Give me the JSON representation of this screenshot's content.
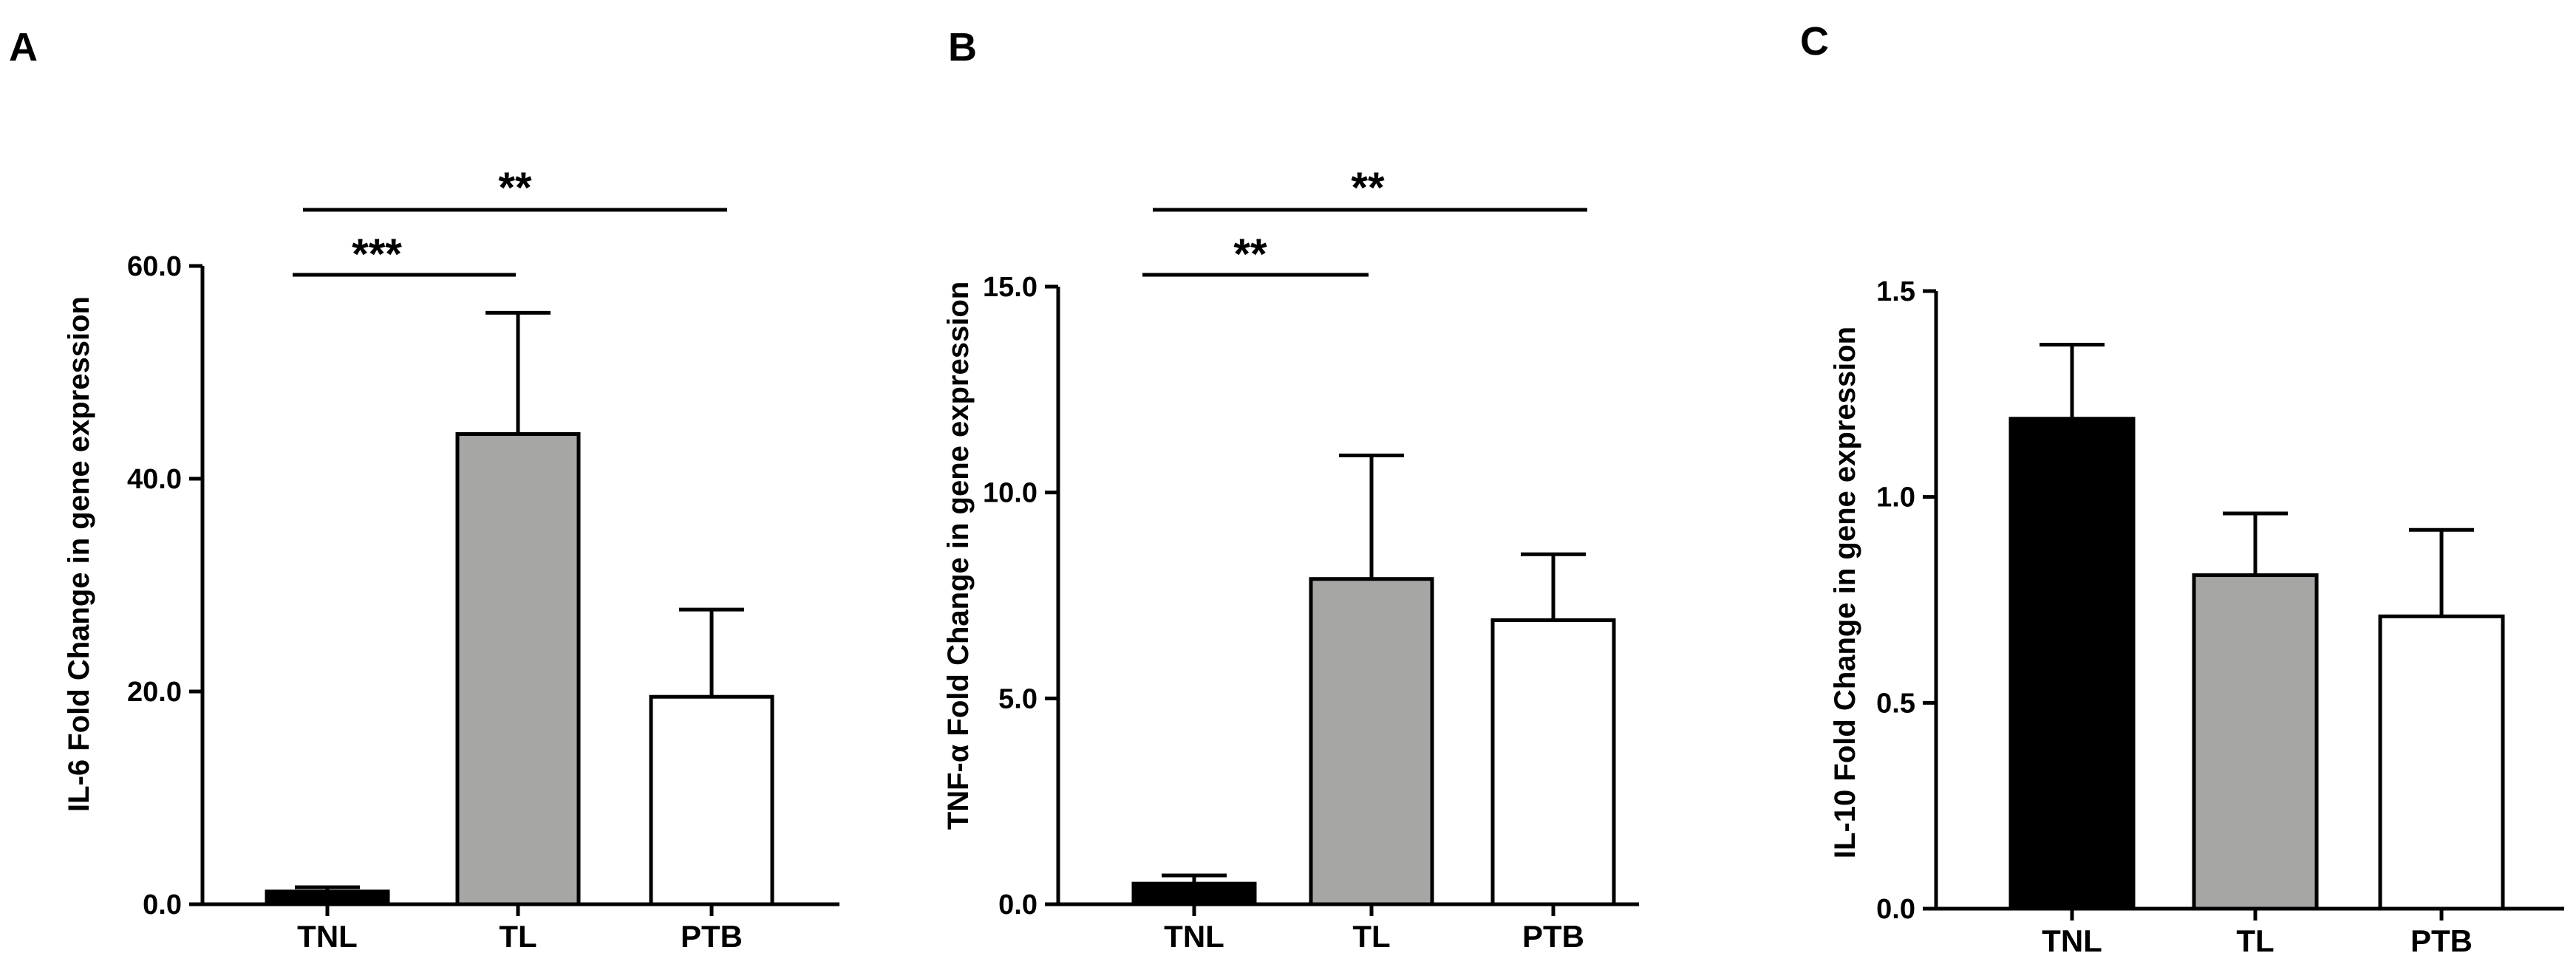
{
  "chart_data": [
    {
      "type": "bar",
      "panel": "A",
      "ylabel": "IL-6 Fold Change in gene expression",
      "categories": [
        "TNL",
        "TL",
        "PTB"
      ],
      "values": [
        1.2,
        44.2,
        19.5
      ],
      "errors": [
        0.4,
        11.4,
        8.2
      ],
      "colors": [
        "#000000",
        "#a6a6a4",
        "#ffffff"
      ],
      "ylim": [
        0,
        60
      ],
      "yticks": [
        0,
        20,
        40,
        60
      ],
      "ytick_labels": [
        "0.0",
        "20.0",
        "40.0",
        "60.0"
      ],
      "significance": [
        {
          "from": "TNL",
          "to": "TL",
          "label": "***"
        },
        {
          "from": "TNL",
          "to": "PTB",
          "label": "**"
        }
      ],
      "grid": false,
      "legend": "none"
    },
    {
      "type": "bar",
      "panel": "B",
      "ylabel": "TNF-α Fold Change in gene expression",
      "categories": [
        "TNL",
        "TL",
        "PTB"
      ],
      "values": [
        0.5,
        7.9,
        6.9
      ],
      "errors": [
        0.2,
        3.0,
        1.6
      ],
      "colors": [
        "#000000",
        "#a6a6a4",
        "#ffffff"
      ],
      "ylim": [
        0,
        15
      ],
      "yticks": [
        0,
        5,
        10,
        15
      ],
      "ytick_labels": [
        "0.0",
        "5.0",
        "10.0",
        "15.0"
      ],
      "significance": [
        {
          "from": "TNL",
          "to": "TL",
          "label": "**"
        },
        {
          "from": "TNL",
          "to": "PTB",
          "label": "**"
        }
      ],
      "grid": false,
      "legend": "none"
    },
    {
      "type": "bar",
      "panel": "C",
      "ylabel": "IL-10 Fold Change in gene expression",
      "categories": [
        "TNL",
        "TL",
        "PTB"
      ],
      "values": [
        1.19,
        0.81,
        0.71
      ],
      "errors": [
        0.18,
        0.15,
        0.21
      ],
      "colors": [
        "#000000",
        "#a6a6a4",
        "#ffffff"
      ],
      "ylim": [
        0,
        1.5
      ],
      "yticks": [
        0,
        0.5,
        1.0,
        1.5
      ],
      "ytick_labels": [
        "0.0",
        "0.5",
        "1.0",
        "1.5"
      ],
      "significance": [],
      "grid": false,
      "legend": "none"
    }
  ]
}
